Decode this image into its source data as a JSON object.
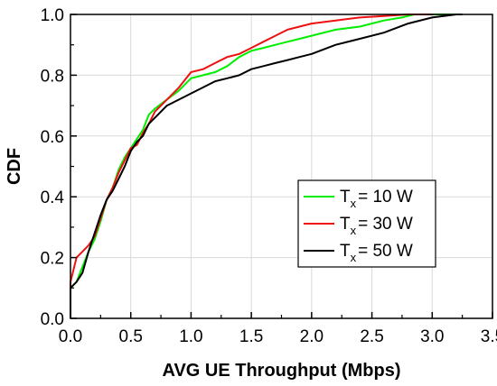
{
  "chart_data": {
    "type": "line",
    "xlabel": "AVG UE Throughput (Mbps)",
    "ylabel": "CDF",
    "xlim": [
      0,
      3.5
    ],
    "ylim": [
      0,
      1.0
    ],
    "xticks": [
      "0.0",
      "0.5",
      "1.0",
      "1.5",
      "2.0",
      "2.5",
      "3.0",
      "3.5"
    ],
    "yticks": [
      "0.0",
      "0.2",
      "0.4",
      "0.6",
      "0.8",
      "1.0"
    ],
    "grid": true,
    "legend_position": "center-right",
    "series": [
      {
        "name_main": "T",
        "name_sub": "x",
        "name_rest": "= 10 W",
        "color": "#00ee00",
        "x": [
          0.0,
          0.0,
          0.05,
          0.1,
          0.15,
          0.2,
          0.25,
          0.3,
          0.35,
          0.4,
          0.45,
          0.5,
          0.55,
          0.6,
          0.65,
          0.7,
          0.8,
          0.9,
          1.0,
          1.1,
          1.2,
          1.3,
          1.4,
          1.5,
          1.6,
          1.7,
          1.8,
          1.9,
          2.0,
          2.2,
          2.4,
          2.6,
          2.75,
          2.85,
          3.0,
          3.2
        ],
        "y": [
          0.0,
          0.1,
          0.12,
          0.17,
          0.22,
          0.26,
          0.32,
          0.39,
          0.43,
          0.49,
          0.53,
          0.56,
          0.59,
          0.62,
          0.67,
          0.69,
          0.72,
          0.75,
          0.79,
          0.8,
          0.81,
          0.83,
          0.86,
          0.88,
          0.89,
          0.9,
          0.91,
          0.92,
          0.93,
          0.95,
          0.96,
          0.98,
          0.99,
          1.0,
          1.0,
          1.0
        ]
      },
      {
        "name_main": "T",
        "name_sub": "x",
        "name_rest": "= 30 W",
        "color": "#ee1111",
        "x": [
          0.0,
          0.0,
          0.05,
          0.1,
          0.15,
          0.2,
          0.25,
          0.3,
          0.35,
          0.4,
          0.45,
          0.5,
          0.55,
          0.6,
          0.65,
          0.7,
          0.8,
          0.9,
          1.0,
          1.1,
          1.2,
          1.3,
          1.4,
          1.5,
          1.6,
          1.7,
          1.8,
          1.9,
          2.0,
          2.2,
          2.4,
          2.6,
          2.8,
          3.0
        ],
        "y": [
          0.0,
          0.12,
          0.2,
          0.22,
          0.24,
          0.27,
          0.33,
          0.39,
          0.43,
          0.48,
          0.52,
          0.56,
          0.57,
          0.61,
          0.64,
          0.68,
          0.72,
          0.76,
          0.81,
          0.82,
          0.84,
          0.86,
          0.87,
          0.89,
          0.91,
          0.93,
          0.95,
          0.96,
          0.97,
          0.98,
          0.99,
          0.995,
          1.0,
          1.0
        ]
      },
      {
        "name_main": "T",
        "name_sub": "x",
        "name_rest": "= 50 W",
        "color": "#000000",
        "x": [
          0.0,
          0.0,
          0.05,
          0.1,
          0.15,
          0.2,
          0.25,
          0.3,
          0.35,
          0.4,
          0.45,
          0.5,
          0.55,
          0.6,
          0.65,
          0.7,
          0.8,
          0.9,
          1.0,
          1.1,
          1.2,
          1.3,
          1.4,
          1.5,
          1.6,
          1.7,
          1.8,
          1.9,
          2.0,
          2.2,
          2.4,
          2.6,
          2.8,
          3.0,
          3.2,
          3.25
        ],
        "y": [
          0.0,
          0.1,
          0.12,
          0.15,
          0.22,
          0.28,
          0.34,
          0.39,
          0.42,
          0.46,
          0.5,
          0.55,
          0.58,
          0.6,
          0.64,
          0.66,
          0.7,
          0.72,
          0.74,
          0.76,
          0.78,
          0.79,
          0.8,
          0.82,
          0.83,
          0.84,
          0.85,
          0.86,
          0.87,
          0.9,
          0.92,
          0.94,
          0.97,
          0.99,
          1.0,
          1.0
        ]
      }
    ]
  }
}
